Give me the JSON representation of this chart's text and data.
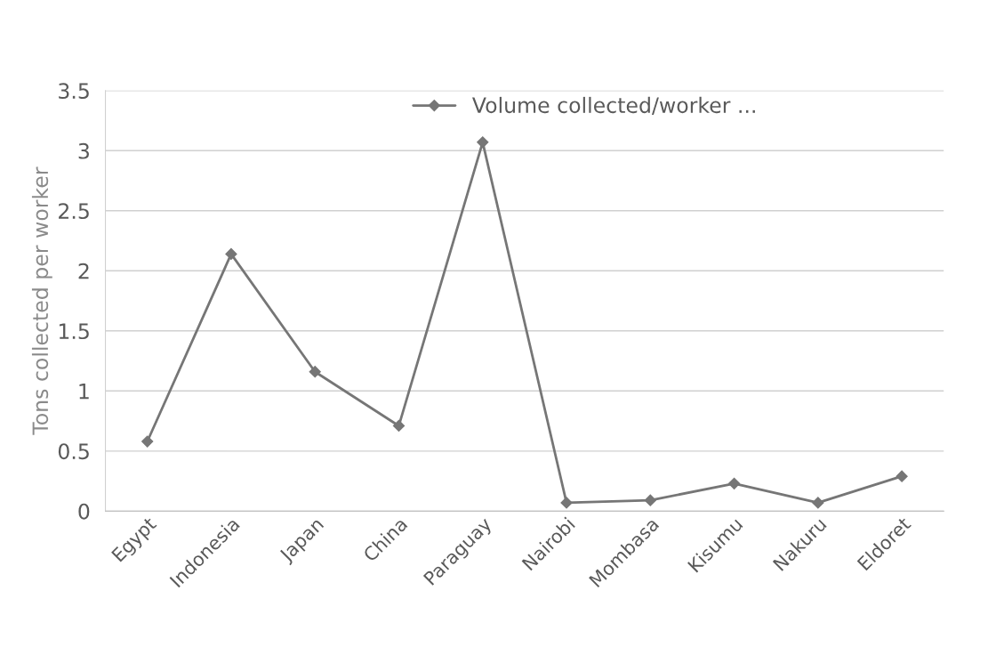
{
  "chart_data": {
    "type": "line",
    "ylabel": "Tons collected per worker",
    "categories": [
      "Egypt",
      "Indonesia",
      "Japan",
      "China",
      "Paraguay",
      "Nairobi",
      "Mombasa",
      "Kisumu",
      "Nakuru",
      "Eldoret"
    ],
    "series": [
      {
        "name": "Volume collected/worker ...",
        "color": "#767676",
        "values": [
          0.58,
          2.14,
          1.16,
          0.71,
          3.07,
          0.07,
          0.09,
          0.23,
          0.07,
          0.29
        ]
      }
    ],
    "ylim": [
      0,
      3.5
    ],
    "yticks": [
      0,
      0.5,
      1,
      1.5,
      2,
      2.5,
      3,
      3.5
    ],
    "grid": "y",
    "legend": "top right",
    "marker": "diamond",
    "line_style": "solid"
  }
}
